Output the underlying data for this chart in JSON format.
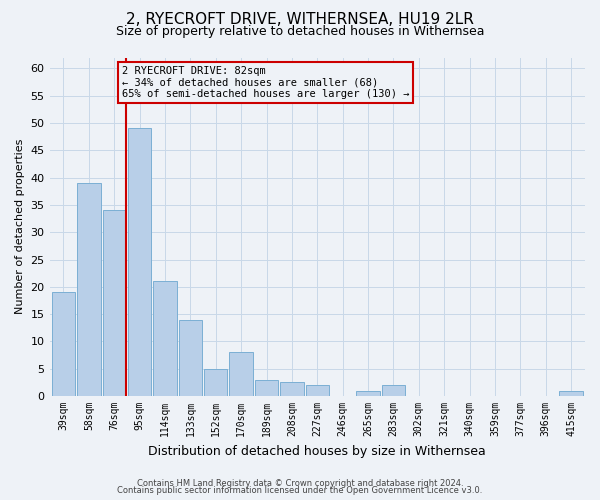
{
  "title": "2, RYECROFT DRIVE, WITHERNSEA, HU19 2LR",
  "subtitle": "Size of property relative to detached houses in Withernsea",
  "xlabel": "Distribution of detached houses by size in Withernsea",
  "ylabel": "Number of detached properties",
  "bar_labels": [
    "39sqm",
    "58sqm",
    "76sqm",
    "95sqm",
    "114sqm",
    "133sqm",
    "152sqm",
    "170sqm",
    "189sqm",
    "208sqm",
    "227sqm",
    "246sqm",
    "265sqm",
    "283sqm",
    "302sqm",
    "321sqm",
    "340sqm",
    "359sqm",
    "377sqm",
    "396sqm",
    "415sqm"
  ],
  "bar_values": [
    19,
    39,
    34,
    49,
    21,
    14,
    5,
    8,
    3,
    2.5,
    2,
    0,
    1,
    2,
    0,
    0,
    0,
    0,
    0,
    0,
    1
  ],
  "bar_color": "#b8cfe8",
  "bar_edgecolor": "#7bafd4",
  "grid_color": "#c8d8e8",
  "vline_color": "#cc0000",
  "annotation_title": "2 RYECROFT DRIVE: 82sqm",
  "annotation_line1": "← 34% of detached houses are smaller (68)",
  "annotation_line2": "65% of semi-detached houses are larger (130) →",
  "annotation_box_edgecolor": "#cc0000",
  "ylim": [
    0,
    62
  ],
  "yticks": [
    0,
    5,
    10,
    15,
    20,
    25,
    30,
    35,
    40,
    45,
    50,
    55,
    60
  ],
  "footnote1": "Contains HM Land Registry data © Crown copyright and database right 2024.",
  "footnote2": "Contains public sector information licensed under the Open Government Licence v3.0.",
  "background_color": "#eef2f7",
  "title_fontsize": 11,
  "subtitle_fontsize": 9,
  "axis_fontsize": 8,
  "tick_fontsize": 7,
  "footnote_fontsize": 6
}
